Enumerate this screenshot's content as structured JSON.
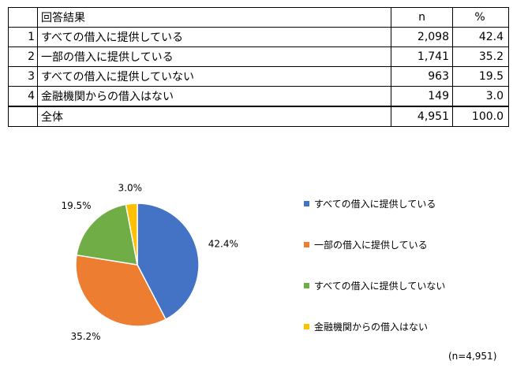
{
  "table": {
    "headers": {
      "label": "回答結果",
      "n": "n",
      "pct": "%"
    },
    "rows": [
      {
        "no": "1",
        "label": "すべての借入に提供している",
        "n": "2,098",
        "pct": "42.4"
      },
      {
        "no": "2",
        "label": "一部の借入に提供している",
        "n": "1,741",
        "pct": "35.2"
      },
      {
        "no": "3",
        "label": "すべての借入に提供していない",
        "n": "963",
        "pct": "19.5"
      },
      {
        "no": "4",
        "label": "金融機関からの借入はない",
        "n": "149",
        "pct": "3.0"
      }
    ],
    "total": {
      "label": "全体",
      "n": "4,951",
      "pct": "100.0"
    }
  },
  "chart_data": {
    "type": "pie",
    "categories": [
      "すべての借入に提供している",
      "一部の借入に提供している",
      "すべての借入に提供していない",
      "金融機関からの借入はない"
    ],
    "values": [
      42.4,
      35.2,
      19.5,
      3.0
    ],
    "data_labels": [
      "42.4%",
      "35.2%",
      "19.5%",
      "3.0%"
    ],
    "colors": [
      "#4472C4",
      "#ED7D31",
      "#70AD47",
      "#FFC000"
    ],
    "legend_position": "right"
  },
  "note": "(n=4,951)"
}
